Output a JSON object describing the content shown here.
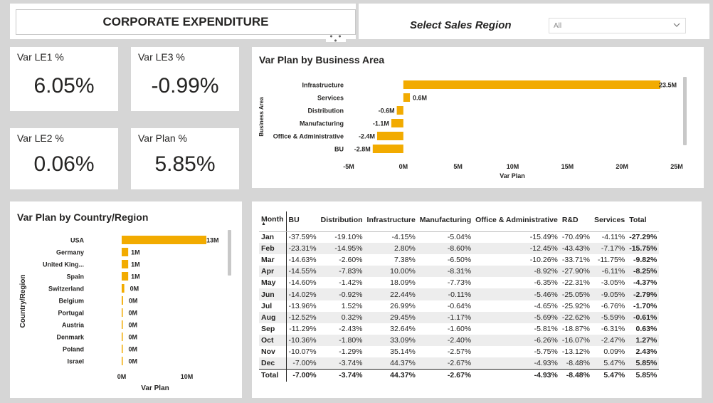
{
  "header": {
    "title": "CORPORATE EXPENDITURE",
    "more": "• • •"
  },
  "filter": {
    "label": "Select Sales Region",
    "value": "All"
  },
  "kpis": [
    {
      "label": "Var LE1 %",
      "value": "6.05%"
    },
    {
      "label": "Var LE3 %",
      "value": "-0.99%"
    },
    {
      "label": "Var LE2 %",
      "value": "0.06%"
    },
    {
      "label": "Var Plan %",
      "value": "5.85%"
    }
  ],
  "colors": {
    "bar": "#f2ab00"
  },
  "business_chart": {
    "title": "Var Plan by Business Area",
    "xlabel": "Var Plan",
    "ylabel": "Business Area"
  },
  "country_chart": {
    "title": "Var Plan by Country/Region",
    "xlabel": "Var Plan",
    "ylabel": "Country/Region"
  },
  "chart_data": [
    {
      "type": "bar",
      "title": "Var Plan by Business Area",
      "xlabel": "Var Plan",
      "ylabel": "Business Area",
      "orientation": "horizontal",
      "categories": [
        "Infrastructure",
        "Services",
        "Distribution",
        "Manufacturing",
        "Office & Administrative",
        "BU"
      ],
      "values": [
        23.5,
        0.6,
        -0.6,
        -1.1,
        -2.4,
        -2.8
      ],
      "labels": [
        "23.5M",
        "0.6M",
        "-0.6M",
        "-1.1M",
        "-2.4M",
        "-2.8M"
      ],
      "xticks": [
        "-5M",
        "0M",
        "5M",
        "10M",
        "15M",
        "20M",
        "25M"
      ],
      "xtick_values": [
        -5,
        0,
        5,
        10,
        15,
        20,
        25
      ],
      "xlim": [
        -5,
        25
      ],
      "unit": "M"
    },
    {
      "type": "bar",
      "title": "Var Plan by Country/Region",
      "xlabel": "Var Plan",
      "ylabel": "Country/Region",
      "orientation": "horizontal",
      "categories": [
        "USA",
        "Germany",
        "United King...",
        "Spain",
        "Switzerland",
        "Belgium",
        "Portugal",
        "Austria",
        "Denmark",
        "Poland",
        "Israel"
      ],
      "values": [
        13,
        1,
        1,
        1,
        0.4,
        0.2,
        0.1,
        0.05,
        0.05,
        0.05,
        0.05
      ],
      "labels": [
        "13M",
        "1M",
        "1M",
        "1M",
        "0M",
        "0M",
        "0M",
        "0M",
        "0M",
        "0M",
        "0M"
      ],
      "xticks": [
        "0M",
        "10M"
      ],
      "xtick_values": [
        0,
        10
      ],
      "xlim": [
        0,
        13
      ],
      "unit": "M"
    }
  ],
  "table": {
    "columns": [
      "Month",
      "BU",
      "Distribution",
      "Infrastructure",
      "Manufacturing",
      "Office & Administrative",
      "R&D",
      "Services",
      "Total"
    ],
    "rows": [
      [
        "Jan",
        "-37.59%",
        "-19.10%",
        "-4.15%",
        "-5.04%",
        "-15.49%",
        "-70.49%",
        "-4.11%",
        "-27.29%"
      ],
      [
        "Feb",
        "-23.31%",
        "-14.95%",
        "2.80%",
        "-8.60%",
        "-12.45%",
        "-43.43%",
        "-7.17%",
        "-15.75%"
      ],
      [
        "Mar",
        "-14.63%",
        "-2.60%",
        "7.38%",
        "-6.50%",
        "-10.26%",
        "-33.71%",
        "-11.75%",
        "-9.82%"
      ],
      [
        "Apr",
        "-14.55%",
        "-7.83%",
        "10.00%",
        "-8.31%",
        "-8.92%",
        "-27.90%",
        "-6.11%",
        "-8.25%"
      ],
      [
        "May",
        "-14.60%",
        "-1.42%",
        "18.09%",
        "-7.73%",
        "-6.35%",
        "-22.31%",
        "-3.05%",
        "-4.37%"
      ],
      [
        "Jun",
        "-14.02%",
        "-0.92%",
        "22.44%",
        "-0.11%",
        "-5.46%",
        "-25.05%",
        "-9.05%",
        "-2.79%"
      ],
      [
        "Jul",
        "-13.96%",
        "1.52%",
        "26.99%",
        "-0.64%",
        "-4.65%",
        "-25.92%",
        "-6.76%",
        "-1.70%"
      ],
      [
        "Aug",
        "-12.52%",
        "0.32%",
        "29.45%",
        "-1.17%",
        "-5.69%",
        "-22.62%",
        "-5.59%",
        "-0.61%"
      ],
      [
        "Sep",
        "-11.29%",
        "-2.43%",
        "32.64%",
        "-1.60%",
        "-5.81%",
        "-18.87%",
        "-6.31%",
        "0.63%"
      ],
      [
        "Oct",
        "-10.36%",
        "-1.80%",
        "33.09%",
        "-2.40%",
        "-6.26%",
        "-16.07%",
        "-2.47%",
        "1.27%"
      ],
      [
        "Nov",
        "-10.07%",
        "-1.29%",
        "35.14%",
        "-2.57%",
        "-5.75%",
        "-13.12%",
        "0.09%",
        "2.43%"
      ],
      [
        "Dec",
        "-7.00%",
        "-3.74%",
        "44.37%",
        "-2.67%",
        "-4.93%",
        "-8.48%",
        "5.47%",
        "5.85%"
      ]
    ],
    "total": [
      "Total",
      "-7.00%",
      "-3.74%",
      "44.37%",
      "-2.67%",
      "-4.93%",
      "-8.48%",
      "5.47%",
      "5.85%"
    ]
  }
}
